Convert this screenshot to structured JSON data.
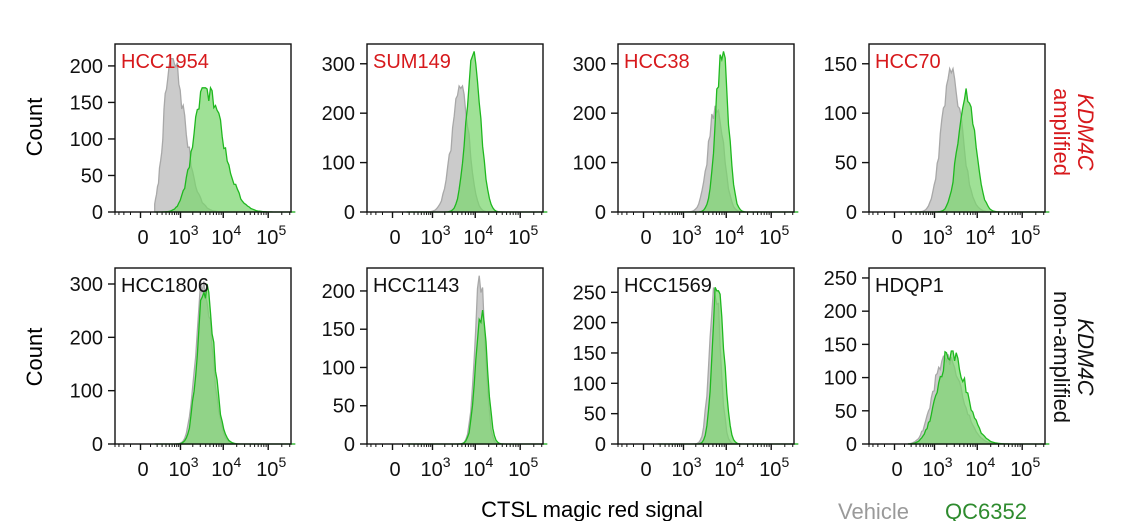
{
  "figure": {
    "y_label": "Count",
    "x_label": "CTSL magic red signal",
    "row_labels": [
      {
        "line1": "KDM4C",
        "line2": "amplified",
        "color": "#d7191c"
      },
      {
        "line1": "KDM4C",
        "line2": "non-amplified",
        "color": "#111111"
      }
    ],
    "legend": {
      "vehicle": "Vehicle",
      "treated": "QC6352"
    }
  },
  "colors": {
    "vehicle_fill": "#c8c8c8",
    "vehicle_line": "#a8a8a8",
    "treated_fill": "#7ad66e",
    "treated_line": "#1fb81f",
    "legend_vehicle_text": "#9a9a9a",
    "legend_treated_text": "#2e8b2e",
    "amplified_title": "#d7191c",
    "nonamplified_title": "#111111"
  },
  "chart_data": [
    {
      "type": "area",
      "title": "HCC1954",
      "row": "KDM4C amplified",
      "xscale": "biexponential",
      "x_ticks": [
        "0",
        "10^3",
        "10^4",
        "10^5"
      ],
      "ylim": [
        0,
        230
      ],
      "y_ticks": [
        0,
        50,
        100,
        150,
        200
      ],
      "series": [
        {
          "name": "Vehicle",
          "mode_x": 600,
          "peak_count": 210,
          "spread_left": 0.24,
          "spread_right": 0.32
        },
        {
          "name": "QC6352",
          "mode_x": 4000,
          "peak_count": 170,
          "spread_left": 0.28,
          "spread_right": 0.38
        }
      ]
    },
    {
      "type": "area",
      "title": "SUM149",
      "row": "KDM4C amplified",
      "xscale": "biexponential",
      "x_ticks": [
        "0",
        "10^3",
        "10^4",
        "10^5"
      ],
      "ylim": [
        0,
        340
      ],
      "y_ticks": [
        0,
        100,
        200,
        300
      ],
      "series": [
        {
          "name": "Vehicle",
          "mode_x": 5000,
          "peak_count": 255,
          "spread_left": 0.22,
          "spread_right": 0.16
        },
        {
          "name": "QC6352",
          "mode_x": 9000,
          "peak_count": 325,
          "spread_left": 0.16,
          "spread_right": 0.16
        }
      ]
    },
    {
      "type": "area",
      "title": "HCC38",
      "row": "KDM4C amplified",
      "xscale": "biexponential",
      "x_ticks": [
        "0",
        "10^3",
        "10^4",
        "10^5"
      ],
      "ylim": [
        0,
        340
      ],
      "y_ticks": [
        0,
        100,
        200,
        300
      ],
      "series": [
        {
          "name": "Vehicle",
          "mode_x": 6000,
          "peak_count": 215,
          "spread_left": 0.18,
          "spread_right": 0.16
        },
        {
          "name": "QC6352",
          "mode_x": 8000,
          "peak_count": 325,
          "spread_left": 0.14,
          "spread_right": 0.14
        }
      ]
    },
    {
      "type": "area",
      "title": "HCC70",
      "row": "KDM4C amplified",
      "xscale": "biexponential",
      "x_ticks": [
        "0",
        "10^3",
        "10^4",
        "10^5"
      ],
      "ylim": [
        0,
        170
      ],
      "y_ticks": [
        0,
        50,
        100,
        150
      ],
      "series": [
        {
          "name": "Vehicle",
          "mode_x": 2500,
          "peak_count": 145,
          "spread_left": 0.22,
          "spread_right": 0.24
        },
        {
          "name": "QC6352",
          "mode_x": 5500,
          "peak_count": 125,
          "spread_left": 0.18,
          "spread_right": 0.2
        }
      ]
    },
    {
      "type": "area",
      "title": "HCC1806",
      "row": "KDM4C non-amplified",
      "xscale": "biexponential",
      "x_ticks": [
        "0",
        "10^3",
        "10^4",
        "10^5"
      ],
      "ylim": [
        0,
        330
      ],
      "y_ticks": [
        0,
        100,
        200,
        300
      ],
      "series": [
        {
          "name": "Vehicle",
          "mode_x": 3500,
          "peak_count": 305,
          "spread_left": 0.17,
          "spread_right": 0.2
        },
        {
          "name": "QC6352",
          "mode_x": 3800,
          "peak_count": 300,
          "spread_left": 0.17,
          "spread_right": 0.2
        }
      ]
    },
    {
      "type": "area",
      "title": "HCC1143",
      "row": "KDM4C non-amplified",
      "xscale": "biexponential",
      "x_ticks": [
        "0",
        "10^3",
        "10^4",
        "10^5"
      ],
      "ylim": [
        0,
        230
      ],
      "y_ticks": [
        0,
        50,
        100,
        150,
        200
      ],
      "series": [
        {
          "name": "Vehicle",
          "mode_x": 13000,
          "peak_count": 220,
          "spread_left": 0.12,
          "spread_right": 0.11
        },
        {
          "name": "QC6352",
          "mode_x": 14000,
          "peak_count": 175,
          "spread_left": 0.13,
          "spread_right": 0.12
        }
      ]
    },
    {
      "type": "area",
      "title": "HCC1569",
      "row": "KDM4C non-amplified",
      "xscale": "biexponential",
      "x_ticks": [
        "0",
        "10^3",
        "10^4",
        "10^5"
      ],
      "ylim": [
        0,
        290
      ],
      "y_ticks": [
        0,
        50,
        100,
        150,
        200,
        250
      ],
      "series": [
        {
          "name": "Vehicle",
          "mode_x": 5500,
          "peak_count": 270,
          "spread_left": 0.12,
          "spread_right": 0.12
        },
        {
          "name": "QC6352",
          "mode_x": 6500,
          "peak_count": 275,
          "spread_left": 0.12,
          "spread_right": 0.13
        }
      ]
    },
    {
      "type": "area",
      "title": "HDQP1",
      "row": "KDM4C non-amplified",
      "xscale": "biexponential",
      "x_ticks": [
        "0",
        "10^3",
        "10^4",
        "10^5"
      ],
      "ylim": [
        0,
        265
      ],
      "y_ticks": [
        0,
        50,
        100,
        150,
        200,
        250
      ],
      "series": [
        {
          "name": "Vehicle",
          "mode_x": 2000,
          "peak_count": 135,
          "spread_left": 0.32,
          "spread_right": 0.34
        },
        {
          "name": "QC6352",
          "mode_x": 2500,
          "peak_count": 140,
          "spread_left": 0.32,
          "spread_right": 0.34
        }
      ]
    }
  ]
}
